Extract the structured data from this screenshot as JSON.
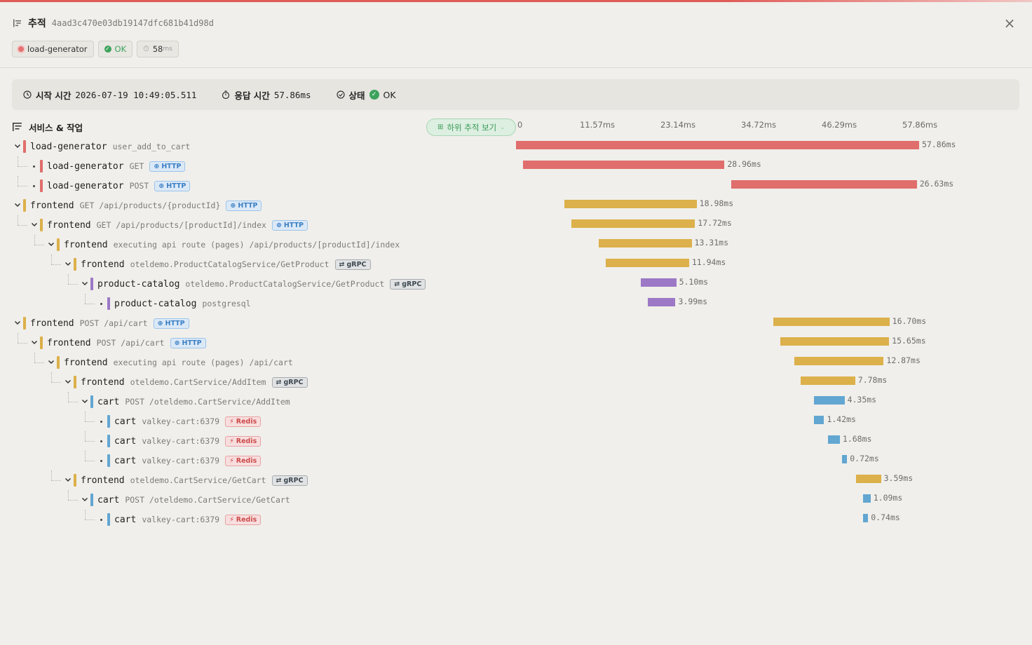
{
  "header": {
    "title": "추적",
    "trace_id": "4aad3c470e03db19147dfc681b41d98d",
    "close_icon": "×"
  },
  "chips": {
    "service": "load-generator",
    "status": "OK",
    "duration_value": "58",
    "duration_unit": "ms"
  },
  "info": {
    "start_label": "시작 시간",
    "start_value": "2026-07-19 10:49:05.511",
    "response_label": "응답 시간",
    "response_value": "57.86ms",
    "status_label": "상태",
    "status_value": "OK"
  },
  "tree_header": {
    "label": "서비스 & 작업",
    "sub_trace_button": "하위 추적 보기"
  },
  "timeline": {
    "total_ms": 57.86,
    "ticks": [
      "0",
      "11.57ms",
      "23.14ms",
      "34.72ms",
      "46.29ms",
      "57.86ms"
    ]
  },
  "colors": {
    "load-generator": "#e06e6c",
    "frontend": "#dcb04a",
    "product-catalog": "#9c78c6",
    "cart": "#62a6d2"
  },
  "spans": [
    {
      "depth": 0,
      "caret": "down",
      "service": "load-generator",
      "op": "user_add_to_cart",
      "badge": "",
      "start_ms": 0,
      "duration_ms": 57.86,
      "label": "57.86ms"
    },
    {
      "depth": 1,
      "caret": "dot",
      "service": "load-generator",
      "op": "GET",
      "badge": "HTTP",
      "start_ms": 0.96,
      "duration_ms": 28.96,
      "label": "28.96ms"
    },
    {
      "depth": 1,
      "caret": "dot",
      "service": "load-generator",
      "op": "POST",
      "badge": "HTTP",
      "start_ms": 30.9,
      "duration_ms": 26.63,
      "label": "26.63ms"
    },
    {
      "depth": 0,
      "caret": "down",
      "service": "frontend",
      "op": "GET /api/products/{productId}",
      "badge": "HTTP",
      "start_ms": 6.95,
      "duration_ms": 18.98,
      "label": "18.98ms"
    },
    {
      "depth": 1,
      "caret": "down",
      "service": "frontend",
      "op": "GET /api/products/[productId]/index",
      "badge": "HTTP",
      "start_ms": 7.97,
      "duration_ms": 17.72,
      "label": "17.72ms"
    },
    {
      "depth": 2,
      "caret": "down",
      "service": "frontend",
      "op": "executing api route (pages) /api/products/[productId]/index",
      "badge": "",
      "start_ms": 11.9,
      "duration_ms": 13.31,
      "label": "13.31ms"
    },
    {
      "depth": 3,
      "caret": "down",
      "service": "frontend",
      "op": "oteldemo.ProductCatalogService/GetProduct",
      "badge": "gRPC",
      "start_ms": 12.9,
      "duration_ms": 11.94,
      "label": "11.94ms"
    },
    {
      "depth": 4,
      "caret": "down",
      "service": "product-catalog",
      "op": "oteldemo.ProductCatalogService/GetProduct",
      "badge": "gRPC",
      "start_ms": 17.9,
      "duration_ms": 5.1,
      "label": "5.10ms"
    },
    {
      "depth": 5,
      "caret": "dot",
      "service": "product-catalog",
      "op": "postgresql",
      "badge": "",
      "start_ms": 18.9,
      "duration_ms": 3.99,
      "label": "3.99ms"
    },
    {
      "depth": 0,
      "caret": "down",
      "service": "frontend",
      "op": "POST /api/cart",
      "badge": "HTTP",
      "start_ms": 36.9,
      "duration_ms": 16.7,
      "label": "16.70ms"
    },
    {
      "depth": 1,
      "caret": "down",
      "service": "frontend",
      "op": "POST /api/cart",
      "badge": "HTTP",
      "start_ms": 37.9,
      "duration_ms": 15.65,
      "label": "15.65ms"
    },
    {
      "depth": 2,
      "caret": "down",
      "service": "frontend",
      "op": "executing api route (pages) /api/cart",
      "badge": "",
      "start_ms": 39.9,
      "duration_ms": 12.87,
      "label": "12.87ms"
    },
    {
      "depth": 3,
      "caret": "down",
      "service": "frontend",
      "op": "oteldemo.CartService/AddItem",
      "badge": "gRPC",
      "start_ms": 40.9,
      "duration_ms": 7.78,
      "label": "7.78ms"
    },
    {
      "depth": 4,
      "caret": "down",
      "service": "cart",
      "op": "POST /oteldemo.CartService/AddItem",
      "badge": "",
      "start_ms": 42.8,
      "duration_ms": 4.35,
      "label": "4.35ms"
    },
    {
      "depth": 5,
      "caret": "dot",
      "service": "cart",
      "op": "valkey-cart:6379",
      "badge": "Redis",
      "start_ms": 42.8,
      "duration_ms": 1.42,
      "label": "1.42ms"
    },
    {
      "depth": 5,
      "caret": "dot",
      "service": "cart",
      "op": "valkey-cart:6379",
      "badge": "Redis",
      "start_ms": 44.8,
      "duration_ms": 1.68,
      "label": "1.68ms"
    },
    {
      "depth": 5,
      "caret": "dot",
      "service": "cart",
      "op": "valkey-cart:6379",
      "badge": "Redis",
      "start_ms": 46.8,
      "duration_ms": 0.72,
      "label": "0.72ms"
    },
    {
      "depth": 3,
      "caret": "down",
      "service": "frontend",
      "op": "oteldemo.CartService/GetCart",
      "badge": "gRPC",
      "start_ms": 48.8,
      "duration_ms": 3.59,
      "label": "3.59ms"
    },
    {
      "depth": 4,
      "caret": "down",
      "service": "cart",
      "op": "POST /oteldemo.CartService/GetCart",
      "badge": "",
      "start_ms": 49.8,
      "duration_ms": 1.09,
      "label": "1.09ms"
    },
    {
      "depth": 5,
      "caret": "dot",
      "service": "cart",
      "op": "valkey-cart:6379",
      "badge": "Redis",
      "start_ms": 49.8,
      "duration_ms": 0.74,
      "label": "0.74ms"
    }
  ]
}
